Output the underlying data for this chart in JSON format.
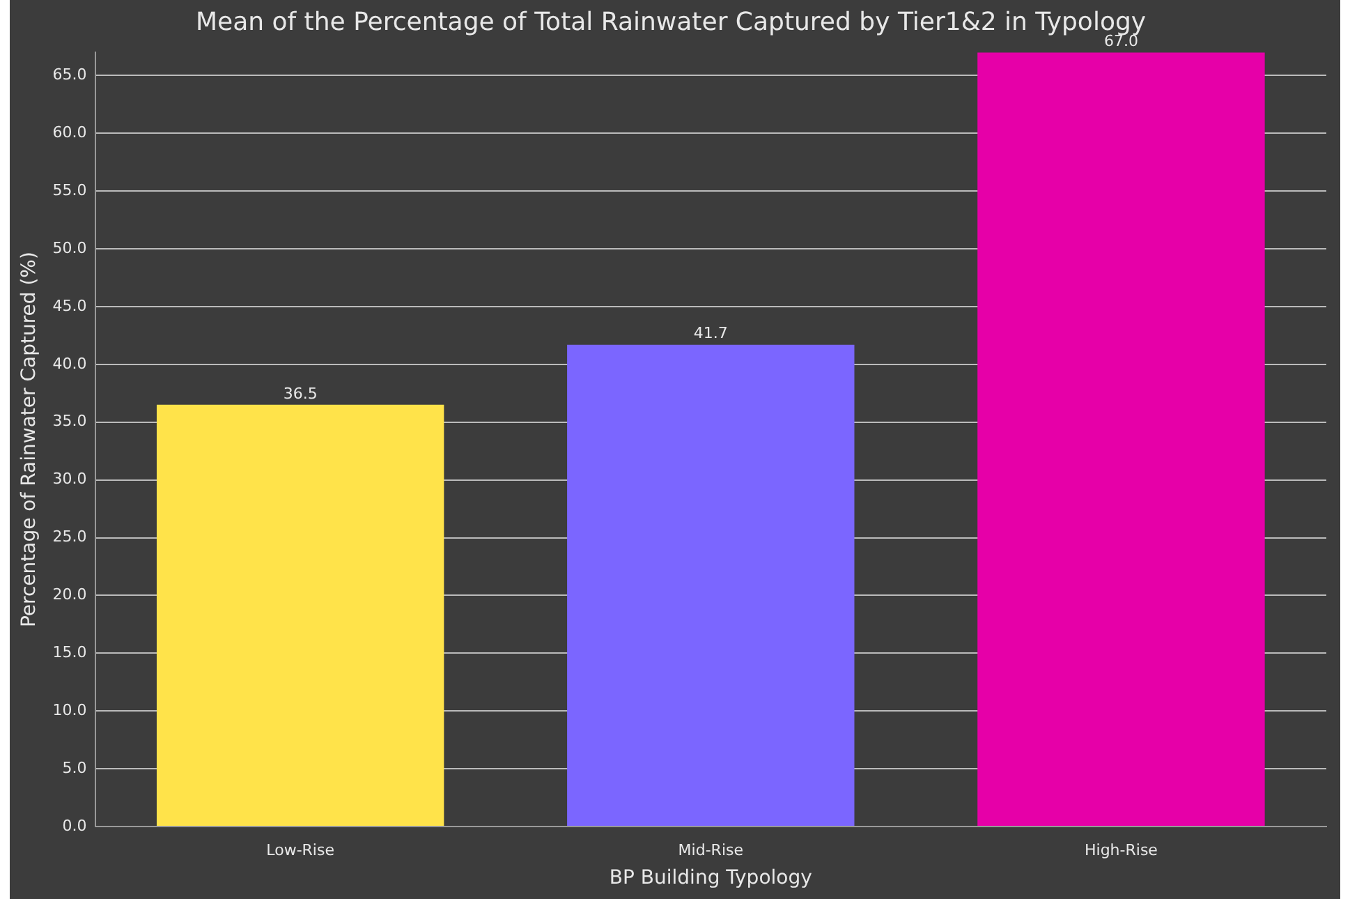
{
  "chart_data": {
    "type": "bar",
    "title": "Mean of the Percentage of Total Rainwater Captured by Tier1&2 in Typology",
    "xlabel": "BP Building Typology",
    "ylabel": "Percentage of Rainwater Captured (%)",
    "categories": [
      "Low-Rise",
      "Mid-Rise",
      "High-Rise"
    ],
    "values": [
      36.5,
      41.7,
      67.0
    ],
    "colors": [
      "#ffe34a",
      "#7b66ff",
      "#e600a8"
    ],
    "value_labels": [
      "36.5",
      "41.7",
      "67.0"
    ],
    "ylim": [
      0,
      67
    ],
    "yticks": [
      {
        "value": 0,
        "label": "0.0"
      },
      {
        "value": 5,
        "label": "5.0"
      },
      {
        "value": 10,
        "label": "10.0"
      },
      {
        "value": 15,
        "label": "15.0"
      },
      {
        "value": 20,
        "label": "20.0"
      },
      {
        "value": 25,
        "label": "25.0"
      },
      {
        "value": 30,
        "label": "30.0"
      },
      {
        "value": 35,
        "label": "35.0"
      },
      {
        "value": 40,
        "label": "40.0"
      },
      {
        "value": 45,
        "label": "45.0"
      },
      {
        "value": 50,
        "label": "50.0"
      },
      {
        "value": 55,
        "label": "55.0"
      },
      {
        "value": 60,
        "label": "60.0"
      },
      {
        "value": 65,
        "label": "65.0"
      }
    ],
    "grid": "y",
    "legend": false
  }
}
